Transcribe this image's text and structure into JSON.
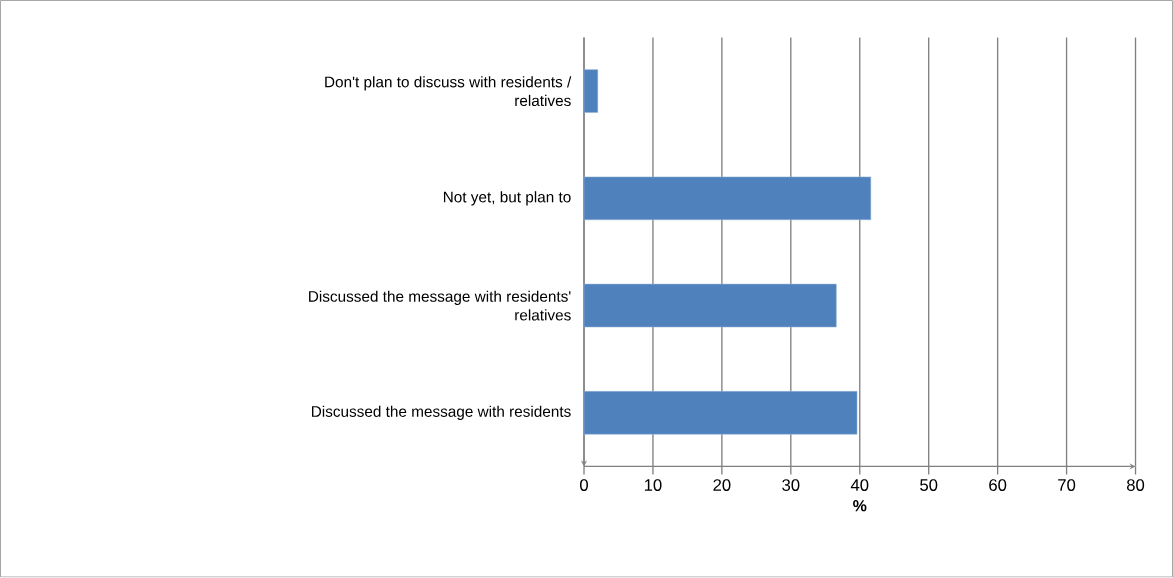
{
  "chart_data": {
    "type": "bar",
    "orientation": "horizontal",
    "categories": [
      "Don't plan to discuss with residents / relatives",
      "Not yet, but plan to",
      "Discussed the message with residents' relatives",
      "Discussed the message with residents"
    ],
    "values": [
      2.0,
      41.6,
      36.6,
      39.6
    ],
    "color": "#4f81bd",
    "xlabel": "%",
    "xlim": [
      0,
      80
    ],
    "xticks": [
      0,
      10,
      20,
      30,
      40,
      50,
      60,
      70,
      80
    ],
    "grid": "x"
  }
}
